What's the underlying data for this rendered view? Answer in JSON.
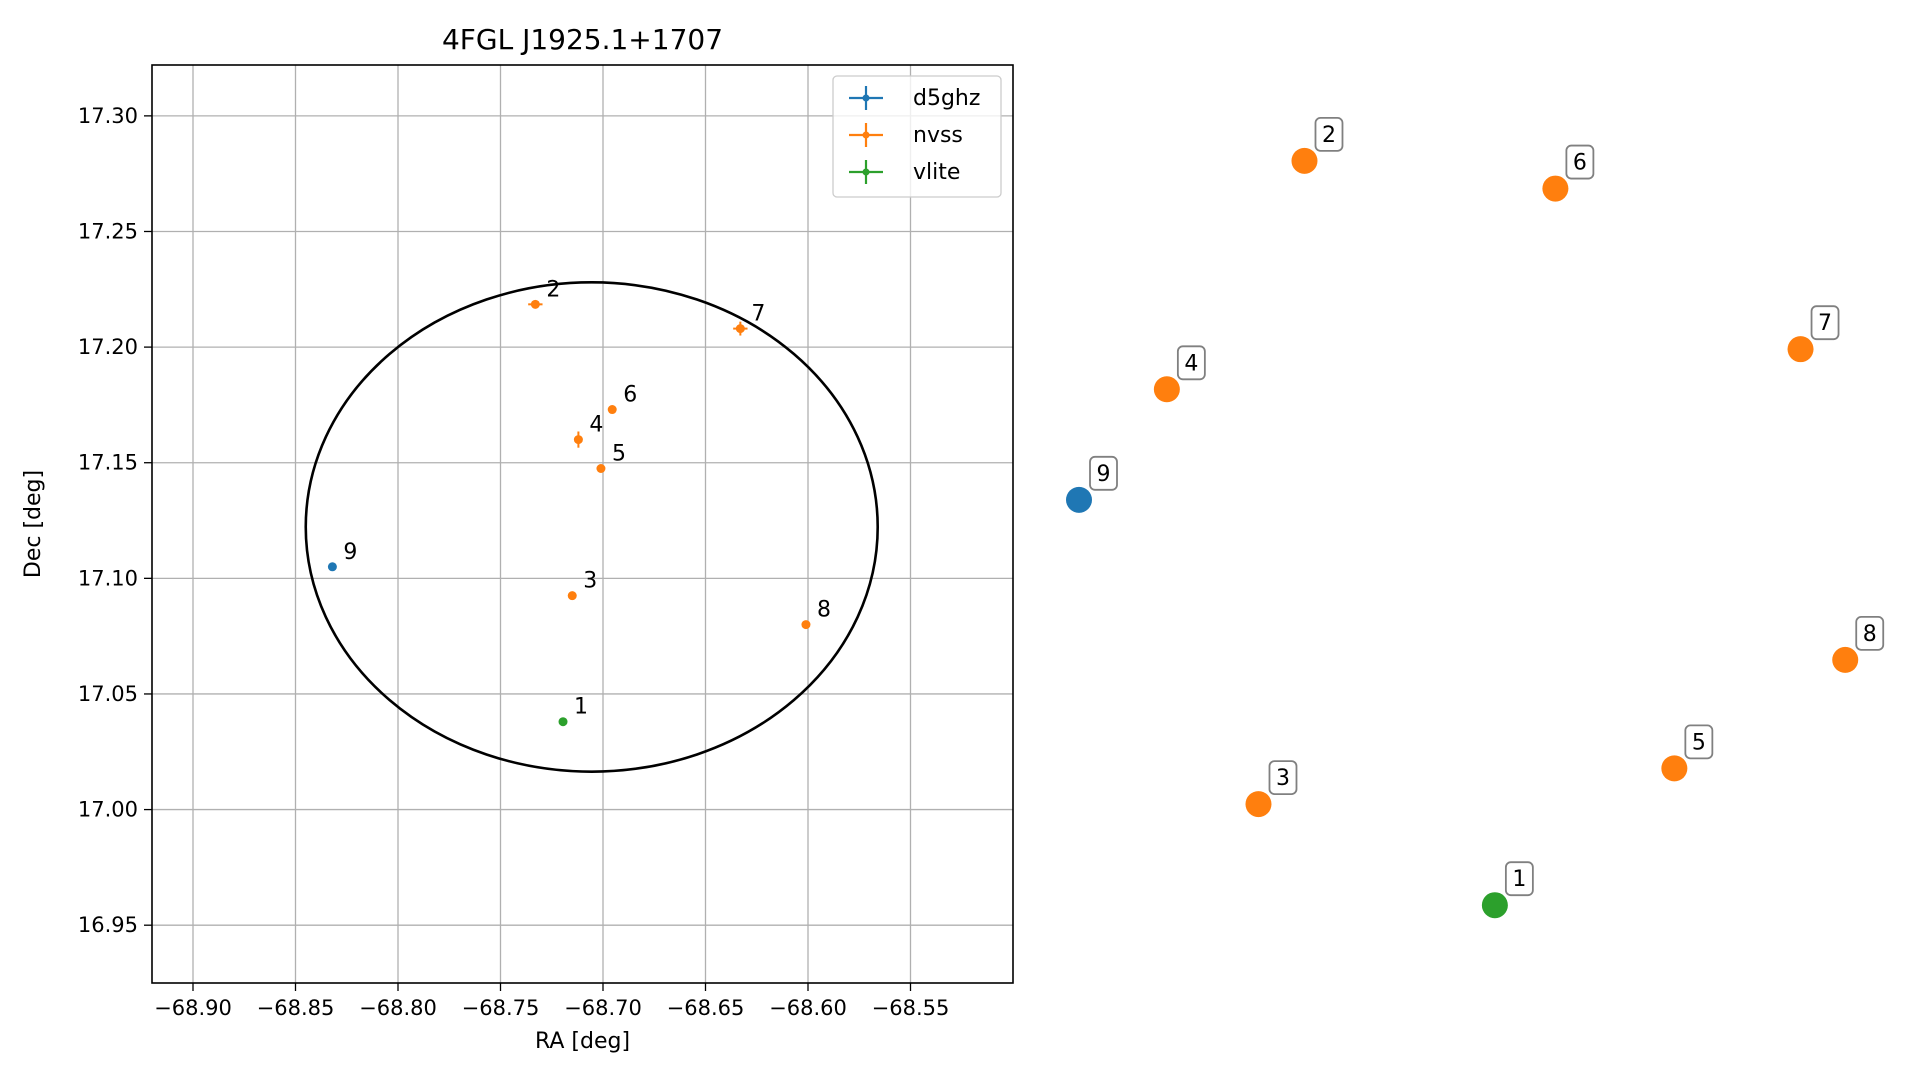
{
  "chart_data": [
    {
      "type": "scatter",
      "title": "4FGL J1925.1+1707",
      "xlabel": "RA [deg]",
      "ylabel": "Dec [deg]",
      "xlim": [
        -68.92,
        -68.5
      ],
      "ylim": [
        16.925,
        17.322
      ],
      "xticks": [
        -68.9,
        -68.85,
        -68.8,
        -68.75,
        -68.7,
        -68.65,
        -68.6,
        -68.55
      ],
      "xtick_labels": [
        "−68.90",
        "−68.85",
        "−68.80",
        "−68.75",
        "−68.70",
        "−68.65",
        "−68.60",
        "−68.55"
      ],
      "yticks": [
        16.95,
        17.0,
        17.05,
        17.1,
        17.15,
        17.2,
        17.25,
        17.3
      ],
      "ytick_labels": [
        "16.95",
        "17.00",
        "17.05",
        "17.10",
        "17.15",
        "17.20",
        "17.25",
        "17.30"
      ],
      "grid": true,
      "legend_position": "top-right",
      "legend": [
        {
          "label": "d5ghz",
          "color": "#1f77b4"
        },
        {
          "label": "nvss",
          "color": "#ff7f0e"
        },
        {
          "label": "vlite",
          "color": "#2ca02c"
        }
      ],
      "ellipse": {
        "center": [
          -68.7055,
          17.1222
        ],
        "semi_axis_ra": 0.1395,
        "semi_axis_dec": 0.1058,
        "color": "#000000"
      },
      "points": [
        {
          "label": "1",
          "series": "vlite",
          "ra": -68.7195,
          "dec": 17.038,
          "ra_err": 0.0,
          "dec_err": 0.0
        },
        {
          "label": "2",
          "series": "nvss",
          "ra": -68.733,
          "dec": 17.2185,
          "ra_err": 0.0035,
          "dec_err": 0.0015
        },
        {
          "label": "3",
          "series": "nvss",
          "ra": -68.715,
          "dec": 17.0925,
          "ra_err": 0.0,
          "dec_err": 0.0
        },
        {
          "label": "4",
          "series": "nvss",
          "ra": -68.712,
          "dec": 17.16,
          "ra_err": 0.0015,
          "dec_err": 0.0035
        },
        {
          "label": "5",
          "series": "nvss",
          "ra": -68.701,
          "dec": 17.1475,
          "ra_err": 0.0,
          "dec_err": 0.0
        },
        {
          "label": "6",
          "series": "nvss",
          "ra": -68.6955,
          "dec": 17.173,
          "ra_err": 0.0,
          "dec_err": 0.0
        },
        {
          "label": "7",
          "series": "nvss",
          "ra": -68.633,
          "dec": 17.208,
          "ra_err": 0.0035,
          "dec_err": 0.003
        },
        {
          "label": "8",
          "series": "nvss",
          "ra": -68.601,
          "dec": 17.08,
          "ra_err": 0.0,
          "dec_err": 0.0
        },
        {
          "label": "9",
          "series": "d5ghz",
          "ra": -68.832,
          "dec": 17.105,
          "ra_err": 0.0,
          "dec_err": 0.0
        }
      ]
    },
    {
      "type": "scatter",
      "axes_visible": false,
      "points": [
        {
          "label": "1",
          "series": "vlite",
          "x": 0.5415,
          "y": 0.0265
        },
        {
          "label": "2",
          "series": "nvss",
          "x": 0.2936,
          "y": 0.9747
        },
        {
          "label": "3",
          "series": "nvss",
          "x": 0.2337,
          "y": 0.1553
        },
        {
          "label": "4",
          "series": "nvss",
          "x": 0.1144,
          "y": 0.6837
        },
        {
          "label": "5",
          "series": "nvss",
          "x": 0.7752,
          "y": 0.2008
        },
        {
          "label": "6",
          "series": "nvss",
          "x": 0.6203,
          "y": 0.9394
        },
        {
          "label": "7",
          "series": "nvss",
          "x": 0.9395,
          "y": 0.7348
        },
        {
          "label": "8",
          "series": "nvss",
          "x": 0.9977,
          "y": 0.339
        },
        {
          "label": "9",
          "series": "d5ghz",
          "x": 0.0,
          "y": 0.5429
        }
      ]
    }
  ]
}
